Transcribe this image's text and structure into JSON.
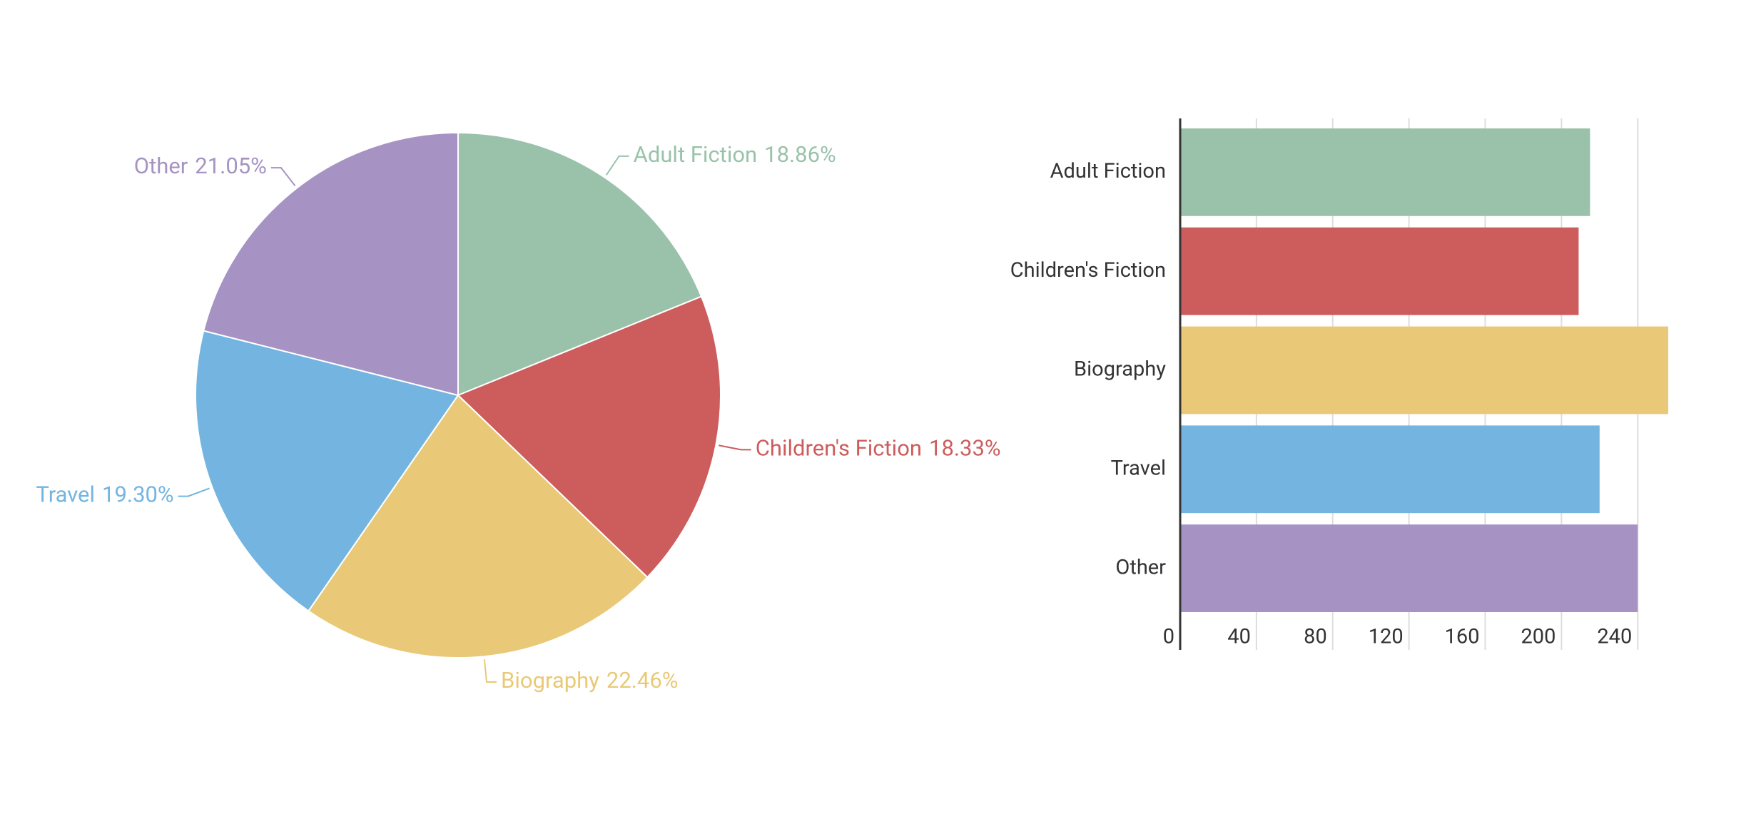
{
  "chart_data": [
    {
      "type": "pie",
      "categories": [
        "Adult Fiction",
        "Children's Fiction",
        "Biography",
        "Travel",
        "Other"
      ],
      "values": [
        18.86,
        18.33,
        22.46,
        19.3,
        21.05
      ],
      "value_labels": [
        "18.86%",
        "18.33%",
        "22.46%",
        "19.30%",
        "21.05%"
      ],
      "colors": [
        "#9ac2aa",
        "#cd5c5c",
        "#e9c977",
        "#73b5e0",
        "#a693c3"
      ]
    },
    {
      "type": "bar",
      "orientation": "horizontal",
      "categories": [
        "Adult Fiction",
        "Children's Fiction",
        "Biography",
        "Travel",
        "Other"
      ],
      "values": [
        215,
        209,
        256,
        220,
        240
      ],
      "colors": [
        "#9ac2aa",
        "#cd5c5c",
        "#e9c977",
        "#73b5e0",
        "#a693c3"
      ],
      "xlim": [
        0,
        256
      ],
      "xticks": [
        0,
        40,
        80,
        120,
        160,
        200,
        240
      ],
      "grid": true
    }
  ]
}
